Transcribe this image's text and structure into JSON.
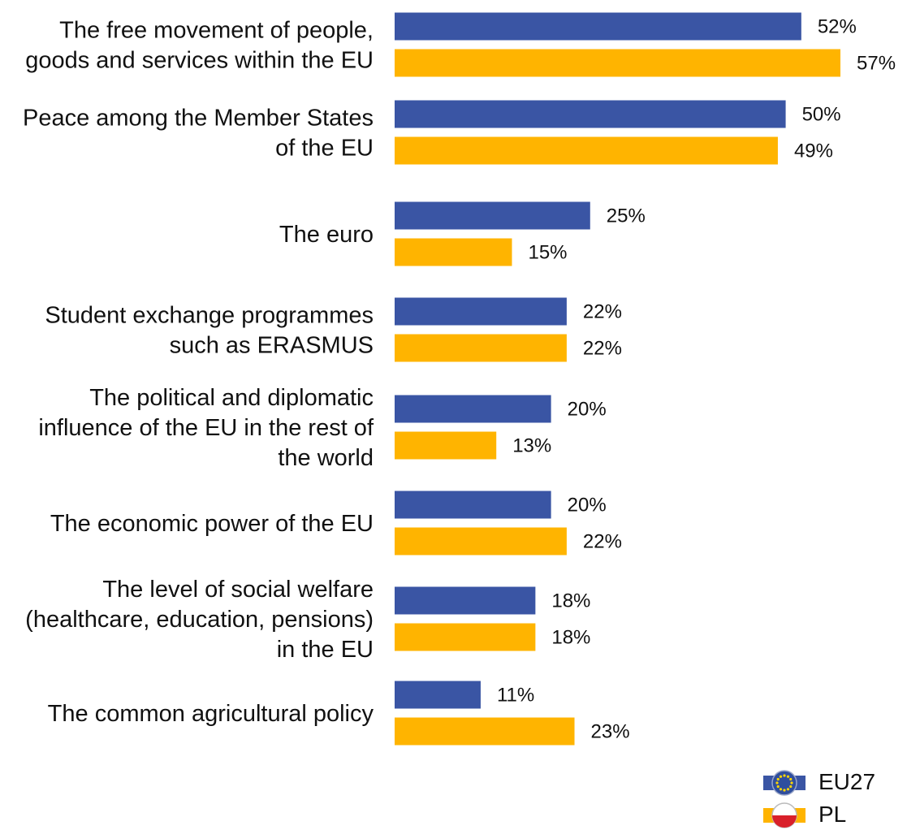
{
  "chart_data": {
    "type": "bar",
    "orientation": "horizontal",
    "categories": [
      [
        "The free movement of people,",
        "goods and services within the EU"
      ],
      [
        "Peace among the Member States",
        "of the EU"
      ],
      [
        "The euro"
      ],
      [
        "Student exchange programmes",
        "such as ERASMUS"
      ],
      [
        "The political and diplomatic",
        "influence of the EU in the rest of",
        "the world"
      ],
      [
        "The economic power of the EU"
      ],
      [
        "The level of social welfare",
        "(healthcare, education, pensions)",
        "in the EU"
      ],
      [
        "The common agricultural policy"
      ]
    ],
    "series": [
      {
        "name": "EU27",
        "color": "#3A55A4",
        "icon": "eu-flag-icon",
        "values": [
          52,
          50,
          25,
          22,
          20,
          20,
          18,
          11
        ],
        "value_labels": [
          "52%",
          "50%",
          "25%",
          "22%",
          "20%",
          "20%",
          "18%",
          "11%"
        ]
      },
      {
        "name": "PL",
        "color": "#FFB400",
        "icon": "poland-flag-icon",
        "values": [
          57,
          49,
          15,
          22,
          13,
          22,
          18,
          23
        ],
        "value_labels": [
          "57%",
          "49%",
          "15%",
          "22%",
          "13%",
          "22%",
          "18%",
          "23%"
        ]
      }
    ],
    "xlim": [
      0,
      57
    ],
    "grid": false,
    "legend_position": "bottom-right"
  }
}
